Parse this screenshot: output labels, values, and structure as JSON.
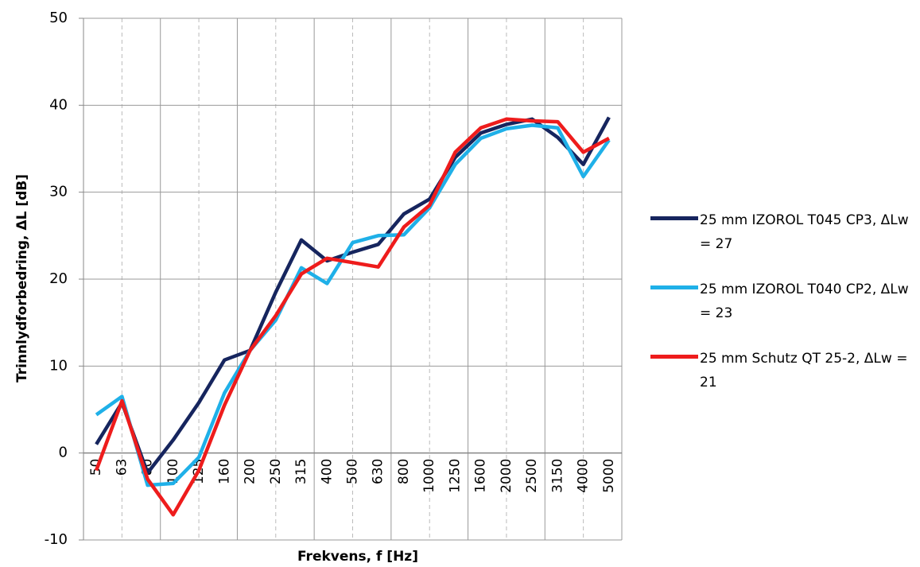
{
  "chart_data": {
    "type": "line",
    "xlabel": "Frekvens, f [Hz]",
    "ylabel": "Trinnlydforbedring, ΔL [dB]",
    "categories": [
      "50",
      "63",
      "80",
      "100",
      "125",
      "160",
      "200",
      "250",
      "315",
      "400",
      "500",
      "630",
      "800",
      "1000",
      "1250",
      "1600",
      "2000",
      "2500",
      "3150",
      "4000",
      "5000"
    ],
    "series": [
      {
        "name": "25 mm IZOROL T045 CP3, ΔLw = 27",
        "color": "#16255e",
        "values": [
          1.0,
          5.8,
          -2.3,
          1.5,
          5.8,
          10.7,
          11.8,
          18.5,
          24.5,
          22.1,
          23.1,
          24.0,
          27.5,
          29.2,
          34.0,
          36.8,
          37.8,
          38.4,
          36.3,
          33.2,
          38.6
        ]
      },
      {
        "name": "25 mm IZOROL T040 CP2, ΔLw = 23",
        "color": "#1fb0e8",
        "values": [
          4.4,
          6.5,
          -3.7,
          -3.5,
          -0.5,
          6.9,
          11.8,
          15.3,
          21.3,
          19.5,
          24.2,
          25.0,
          25.1,
          28.2,
          33.2,
          36.2,
          37.3,
          37.7,
          37.4,
          31.8,
          36.0
        ]
      },
      {
        "name": "25 mm Schutz QT 25-2, ΔLw = 21",
        "color": "#ee1c1c",
        "values": [
          -2.0,
          6.0,
          -3.0,
          -7.1,
          -2.0,
          5.5,
          11.8,
          15.8,
          20.6,
          22.4,
          21.9,
          21.4,
          26.0,
          28.5,
          34.6,
          37.4,
          38.4,
          38.2,
          38.1,
          34.6,
          36.2
        ]
      }
    ],
    "ylim": [
      -10,
      50
    ],
    "yticks": [
      -10,
      0,
      10,
      20,
      30,
      40,
      50
    ],
    "grid": true,
    "legend": "right"
  }
}
